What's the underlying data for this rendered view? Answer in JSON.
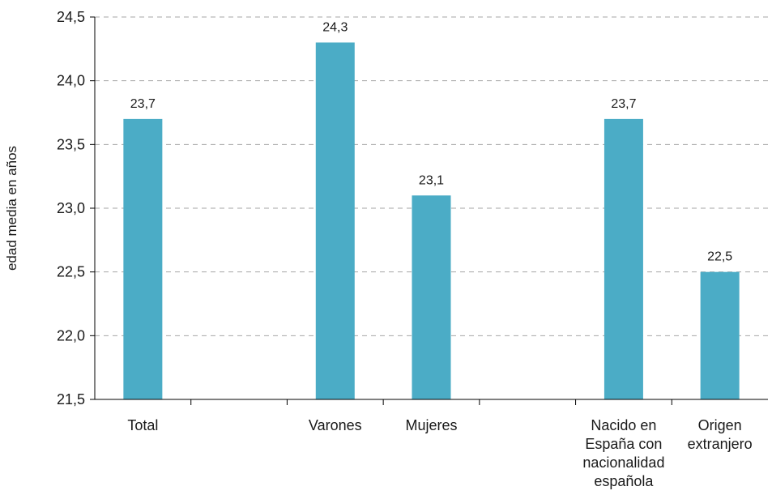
{
  "chart_data": {
    "type": "bar",
    "categories": [
      "Total",
      "",
      "Varones",
      "Mujeres",
      "",
      "Nacido en España con nacionalidad española",
      "Origen extranjero"
    ],
    "category_lines": [
      [
        "Total"
      ],
      [],
      [
        "Varones"
      ],
      [
        "Mujeres"
      ],
      [],
      [
        "Nacido en",
        "España con",
        "nacionalidad",
        "española"
      ],
      [
        "Origen",
        "extranjero"
      ]
    ],
    "values": [
      23.7,
      null,
      24.3,
      23.1,
      null,
      23.7,
      22.5
    ],
    "value_labels": [
      "23,7",
      "",
      "24,3",
      "23,1",
      "",
      "23,7",
      "22,5"
    ],
    "ylabel": "edad media en años",
    "ylim": [
      21.5,
      24.5
    ],
    "yticks": [
      21.5,
      22.0,
      22.5,
      23.0,
      23.5,
      24.0,
      24.5
    ],
    "ytick_labels": [
      "21,5",
      "22,0",
      "22,5",
      "23,0",
      "23,5",
      "24,0",
      "24,5"
    ],
    "grid": true,
    "bar_color": "#4bacc6",
    "grid_color": "#a6a6a6",
    "axis_color": "#000000"
  }
}
